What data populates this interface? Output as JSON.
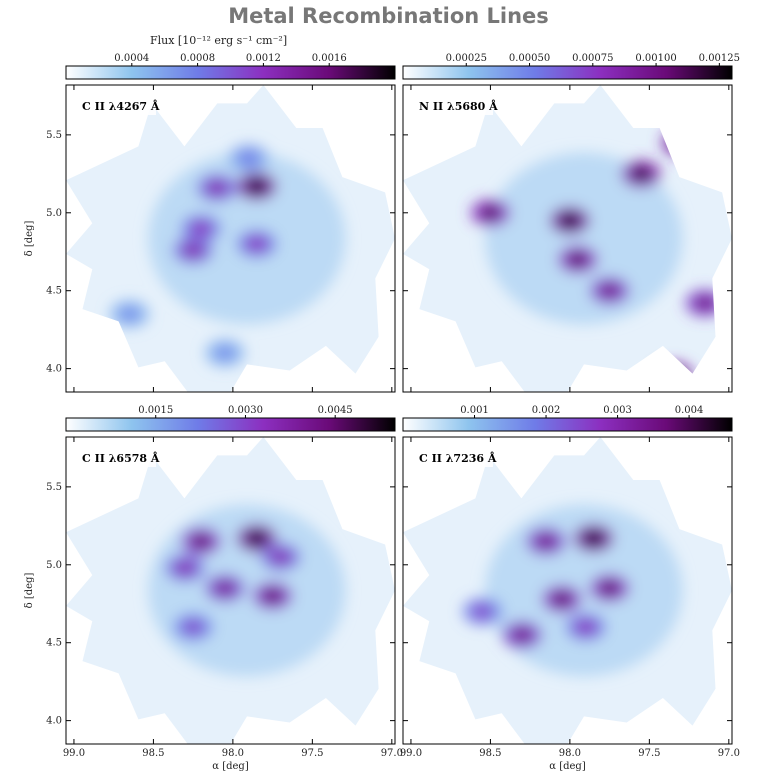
{
  "title": "Metal Recombination Lines",
  "colorbar_label_top": "Flux [10⁻¹² erg s⁻¹ cm⁻²]",
  "axes": {
    "ylabel": "δ [deg]",
    "xlabel": "α [deg]"
  },
  "colors": {
    "cmap": [
      "#ffffff",
      "#8ec4ee",
      "#6f7ce8",
      "#8c2fc0",
      "#6a0a78",
      "#000000"
    ],
    "frame": "#000000"
  },
  "chart_data": [
    {
      "type": "heatmap",
      "label": "C II λ4267 Å",
      "colorbar_ticks": [
        "0.0004",
        "0.0008",
        "0.0012",
        "0.0016"
      ],
      "colorbar_range": [
        0.0,
        0.002
      ],
      "xlim": [
        99.05,
        96.98
      ],
      "ylim": [
        3.85,
        5.82
      ],
      "yticks": [
        "5.5",
        "5.0",
        "4.5",
        "4.0"
      ],
      "xticks": [],
      "blobs": [
        {
          "ra": 97.85,
          "dec": 5.17,
          "flux": 0.002
        },
        {
          "ra": 98.1,
          "dec": 5.16,
          "flux": 0.0013
        },
        {
          "ra": 98.2,
          "dec": 4.9,
          "flux": 0.0012
        },
        {
          "ra": 98.25,
          "dec": 4.76,
          "flux": 0.0013
        },
        {
          "ra": 97.85,
          "dec": 4.8,
          "flux": 0.0012
        },
        {
          "ra": 97.9,
          "dec": 5.35,
          "flux": 0.0008
        },
        {
          "ra": 98.05,
          "dec": 4.1,
          "flux": 0.0007
        },
        {
          "ra": 98.65,
          "dec": 4.35,
          "flux": 0.0007
        }
      ]
    },
    {
      "type": "heatmap",
      "label": "N II λ5680 Å",
      "colorbar_ticks": [
        "0.00025",
        "0.00050",
        "0.00075",
        "0.00100",
        "0.00125"
      ],
      "colorbar_range": [
        0.0,
        0.0013
      ],
      "xlim": [
        99.05,
        96.98
      ],
      "ylim": [
        3.85,
        5.82
      ],
      "yticks": [],
      "xticks": [],
      "blobs": [
        {
          "ra": 98.0,
          "dec": 4.95,
          "flux": 0.0013
        },
        {
          "ra": 97.95,
          "dec": 4.7,
          "flux": 0.0011
        },
        {
          "ra": 98.5,
          "dec": 5.0,
          "flux": 0.0011
        },
        {
          "ra": 97.55,
          "dec": 5.25,
          "flux": 0.0012
        },
        {
          "ra": 97.15,
          "dec": 4.42,
          "flux": 0.001
        },
        {
          "ra": 97.35,
          "dec": 3.95,
          "flux": 0.0013
        },
        {
          "ra": 97.3,
          "dec": 5.45,
          "flux": 0.0012
        },
        {
          "ra": 97.75,
          "dec": 4.5,
          "flux": 0.001
        }
      ]
    },
    {
      "type": "heatmap",
      "label": "C II λ6578 Å",
      "colorbar_ticks": [
        "0.0015",
        "0.0030",
        "0.0045"
      ],
      "colorbar_range": [
        0.0,
        0.0055
      ],
      "xlim": [
        99.05,
        96.98
      ],
      "ylim": [
        3.85,
        5.82
      ],
      "yticks": [
        "5.5",
        "5.0",
        "4.5",
        "4.0"
      ],
      "xticks": [
        "99.0",
        "98.5",
        "98.0",
        "97.5",
        "97.0"
      ],
      "blobs": [
        {
          "ra": 97.85,
          "dec": 5.17,
          "flux": 0.0055
        },
        {
          "ra": 98.2,
          "dec": 5.15,
          "flux": 0.0045
        },
        {
          "ra": 97.75,
          "dec": 4.8,
          "flux": 0.0045
        },
        {
          "ra": 98.05,
          "dec": 4.85,
          "flux": 0.004
        },
        {
          "ra": 98.3,
          "dec": 4.98,
          "flux": 0.0035
        },
        {
          "ra": 98.25,
          "dec": 4.6,
          "flux": 0.003
        },
        {
          "ra": 97.7,
          "dec": 5.05,
          "flux": 0.0035
        }
      ]
    },
    {
      "type": "heatmap",
      "label": "C II λ7236 Å",
      "colorbar_ticks": [
        "0.001",
        "0.002",
        "0.003",
        "0.004"
      ],
      "colorbar_range": [
        0.0,
        0.0046
      ],
      "xlim": [
        99.05,
        96.98
      ],
      "ylim": [
        3.85,
        5.82
      ],
      "yticks": [],
      "xticks": [
        "99.0",
        "98.5",
        "98.0",
        "97.5",
        "97.0"
      ],
      "blobs": [
        {
          "ra": 97.85,
          "dec": 5.17,
          "flux": 0.0046
        },
        {
          "ra": 98.15,
          "dec": 5.15,
          "flux": 0.0035
        },
        {
          "ra": 97.75,
          "dec": 4.85,
          "flux": 0.0038
        },
        {
          "ra": 98.05,
          "dec": 4.78,
          "flux": 0.0038
        },
        {
          "ra": 98.3,
          "dec": 4.55,
          "flux": 0.0035
        },
        {
          "ra": 98.55,
          "dec": 4.7,
          "flux": 0.0025
        },
        {
          "ra": 97.9,
          "dec": 4.6,
          "flux": 0.0028
        }
      ]
    }
  ]
}
